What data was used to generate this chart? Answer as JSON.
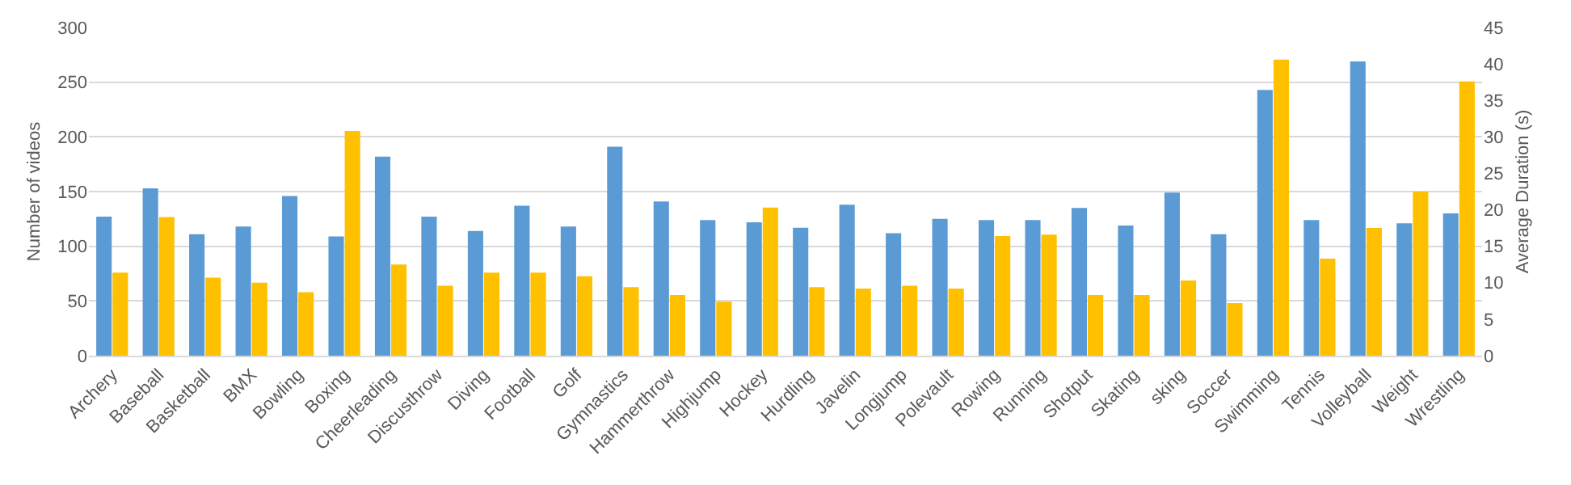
{
  "chart_data": {
    "type": "bar",
    "ylabel": "Number of videos",
    "y2label": "Average Duration (s)",
    "categories": [
      "Archery",
      "Baseball",
      "Basketball",
      "BMX",
      "Bowling",
      "Boxing",
      "Cheerleading",
      "Discusthrow",
      "Diving",
      "Football",
      "Golf",
      "Gymnastics",
      "Hammerthrow",
      "Highjump",
      "Hockey",
      "Hurdling",
      "Javelin",
      "Longjump",
      "Polevault",
      "Rowing",
      "Running",
      "Shotput",
      "Skating",
      "sking",
      "Soccer",
      "Swimming",
      "Tennis",
      "Volleyball",
      "Weight",
      "Wrestling"
    ],
    "series": [
      {
        "color": "#5b9bd5",
        "values": [
          127,
          153,
          111,
          118,
          146,
          109,
          182,
          127,
          114,
          137,
          118,
          191,
          141,
          124,
          122,
          117,
          138,
          112,
          125,
          124,
          124,
          135,
          119,
          149,
          111,
          243,
          124,
          269,
          121,
          130
        ]
      },
      {
        "color": "#ffc000",
        "axis": "y2",
        "values": [
          11.4,
          19,
          10.7,
          10,
          8.7,
          30.8,
          12.5,
          9.6,
          11.4,
          11.4,
          10.9,
          9.4,
          8.3,
          7.4,
          20.3,
          9.4,
          9.2,
          9.6,
          9.2,
          16.4,
          16.6,
          8.3,
          8.3,
          10.3,
          7.2,
          40.6,
          13.3,
          17.5,
          22.5,
          37.6
        ]
      }
    ],
    "ylim": [
      0,
      300
    ],
    "yticks": [
      0,
      50,
      100,
      150,
      200,
      250,
      300
    ],
    "y2lim": [
      0,
      45
    ],
    "y2ticks": [
      0,
      5,
      10,
      15,
      20,
      25,
      30,
      35,
      40,
      45
    ],
    "grid": "y"
  }
}
